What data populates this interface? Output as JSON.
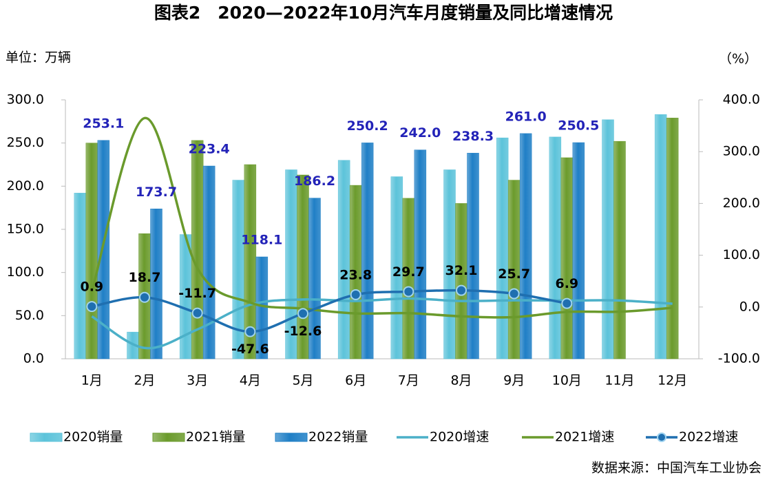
{
  "chart_data": {
    "type": "bar",
    "title": "图表2　2020—2022年10月汽车月度销量及同比增速情况",
    "y_axis_label": "单位：万辆",
    "y2_axis_label": "（%）",
    "source": "数据来源：中国汽车工业协会",
    "categories": [
      "1月",
      "2月",
      "3月",
      "4月",
      "5月",
      "6月",
      "7月",
      "8月",
      "9月",
      "10月",
      "11月",
      "12月"
    ],
    "ylim": [
      0,
      300
    ],
    "yticks": [
      {
        "value": 0,
        "label": "0.0"
      },
      {
        "value": 50,
        "label": "50.0"
      },
      {
        "value": 100,
        "label": "100.0"
      },
      {
        "value": 150,
        "label": "150.0"
      },
      {
        "value": 200,
        "label": "200.0"
      },
      {
        "value": 250,
        "label": "250.0"
      },
      {
        "value": 300,
        "label": "300.0"
      }
    ],
    "y2lim": [
      -100,
      400
    ],
    "y2ticks": [
      {
        "value": -100,
        "label": "-100.0"
      },
      {
        "value": 0,
        "label": "0.0"
      },
      {
        "value": 100,
        "label": "100.0"
      },
      {
        "value": 200,
        "label": "200.0"
      },
      {
        "value": 300,
        "label": "300.0"
      },
      {
        "value": 400,
        "label": "400.0"
      }
    ],
    "series": [
      {
        "name": "2020销量",
        "type": "bar",
        "color": "#5cc3da",
        "values": [
          192,
          31,
          144,
          207,
          219,
          230,
          211,
          219,
          256,
          257,
          277,
          283
        ]
      },
      {
        "name": "2021销量",
        "type": "bar",
        "color": "#6b9b2c",
        "values": [
          250,
          145,
          253,
          225,
          213,
          201,
          186,
          180,
          207,
          233,
          252,
          279
        ]
      },
      {
        "name": "2022销量",
        "type": "bar",
        "color": "#1f7fc6",
        "values": [
          253.1,
          173.7,
          223.4,
          118.1,
          186.2,
          250.2,
          242.0,
          238.3,
          261.0,
          250.5,
          null,
          null
        ],
        "value_labels": [
          "253.1",
          "173.7",
          "223.4",
          "118.1",
          "186.2",
          "250.2",
          "242.0",
          "238.3",
          "261.0",
          "250.5",
          null,
          null
        ]
      },
      {
        "name": "2020增速",
        "type": "line",
        "axis": "y2",
        "color": "#4bb0c8",
        "values": [
          -18,
          -79.1,
          -43.3,
          4.4,
          14.5,
          11.6,
          16.4,
          11.6,
          12.8,
          12.5,
          12.6,
          6.4
        ]
      },
      {
        "name": "2021增速",
        "type": "line",
        "axis": "y2",
        "color": "#6a9a2c",
        "values": [
          29.5,
          364.8,
          75,
          8.6,
          -3.1,
          -12.4,
          -11.9,
          -18,
          -19.6,
          -9.4,
          -9.1,
          -1.6
        ]
      },
      {
        "name": "2022增速",
        "type": "line",
        "axis": "y2",
        "color": "#1f6fb0",
        "markers": true,
        "values": [
          0.9,
          18.7,
          -11.7,
          -47.6,
          -12.6,
          23.8,
          29.7,
          32.1,
          25.7,
          6.9,
          null,
          null
        ]
      }
    ]
  }
}
